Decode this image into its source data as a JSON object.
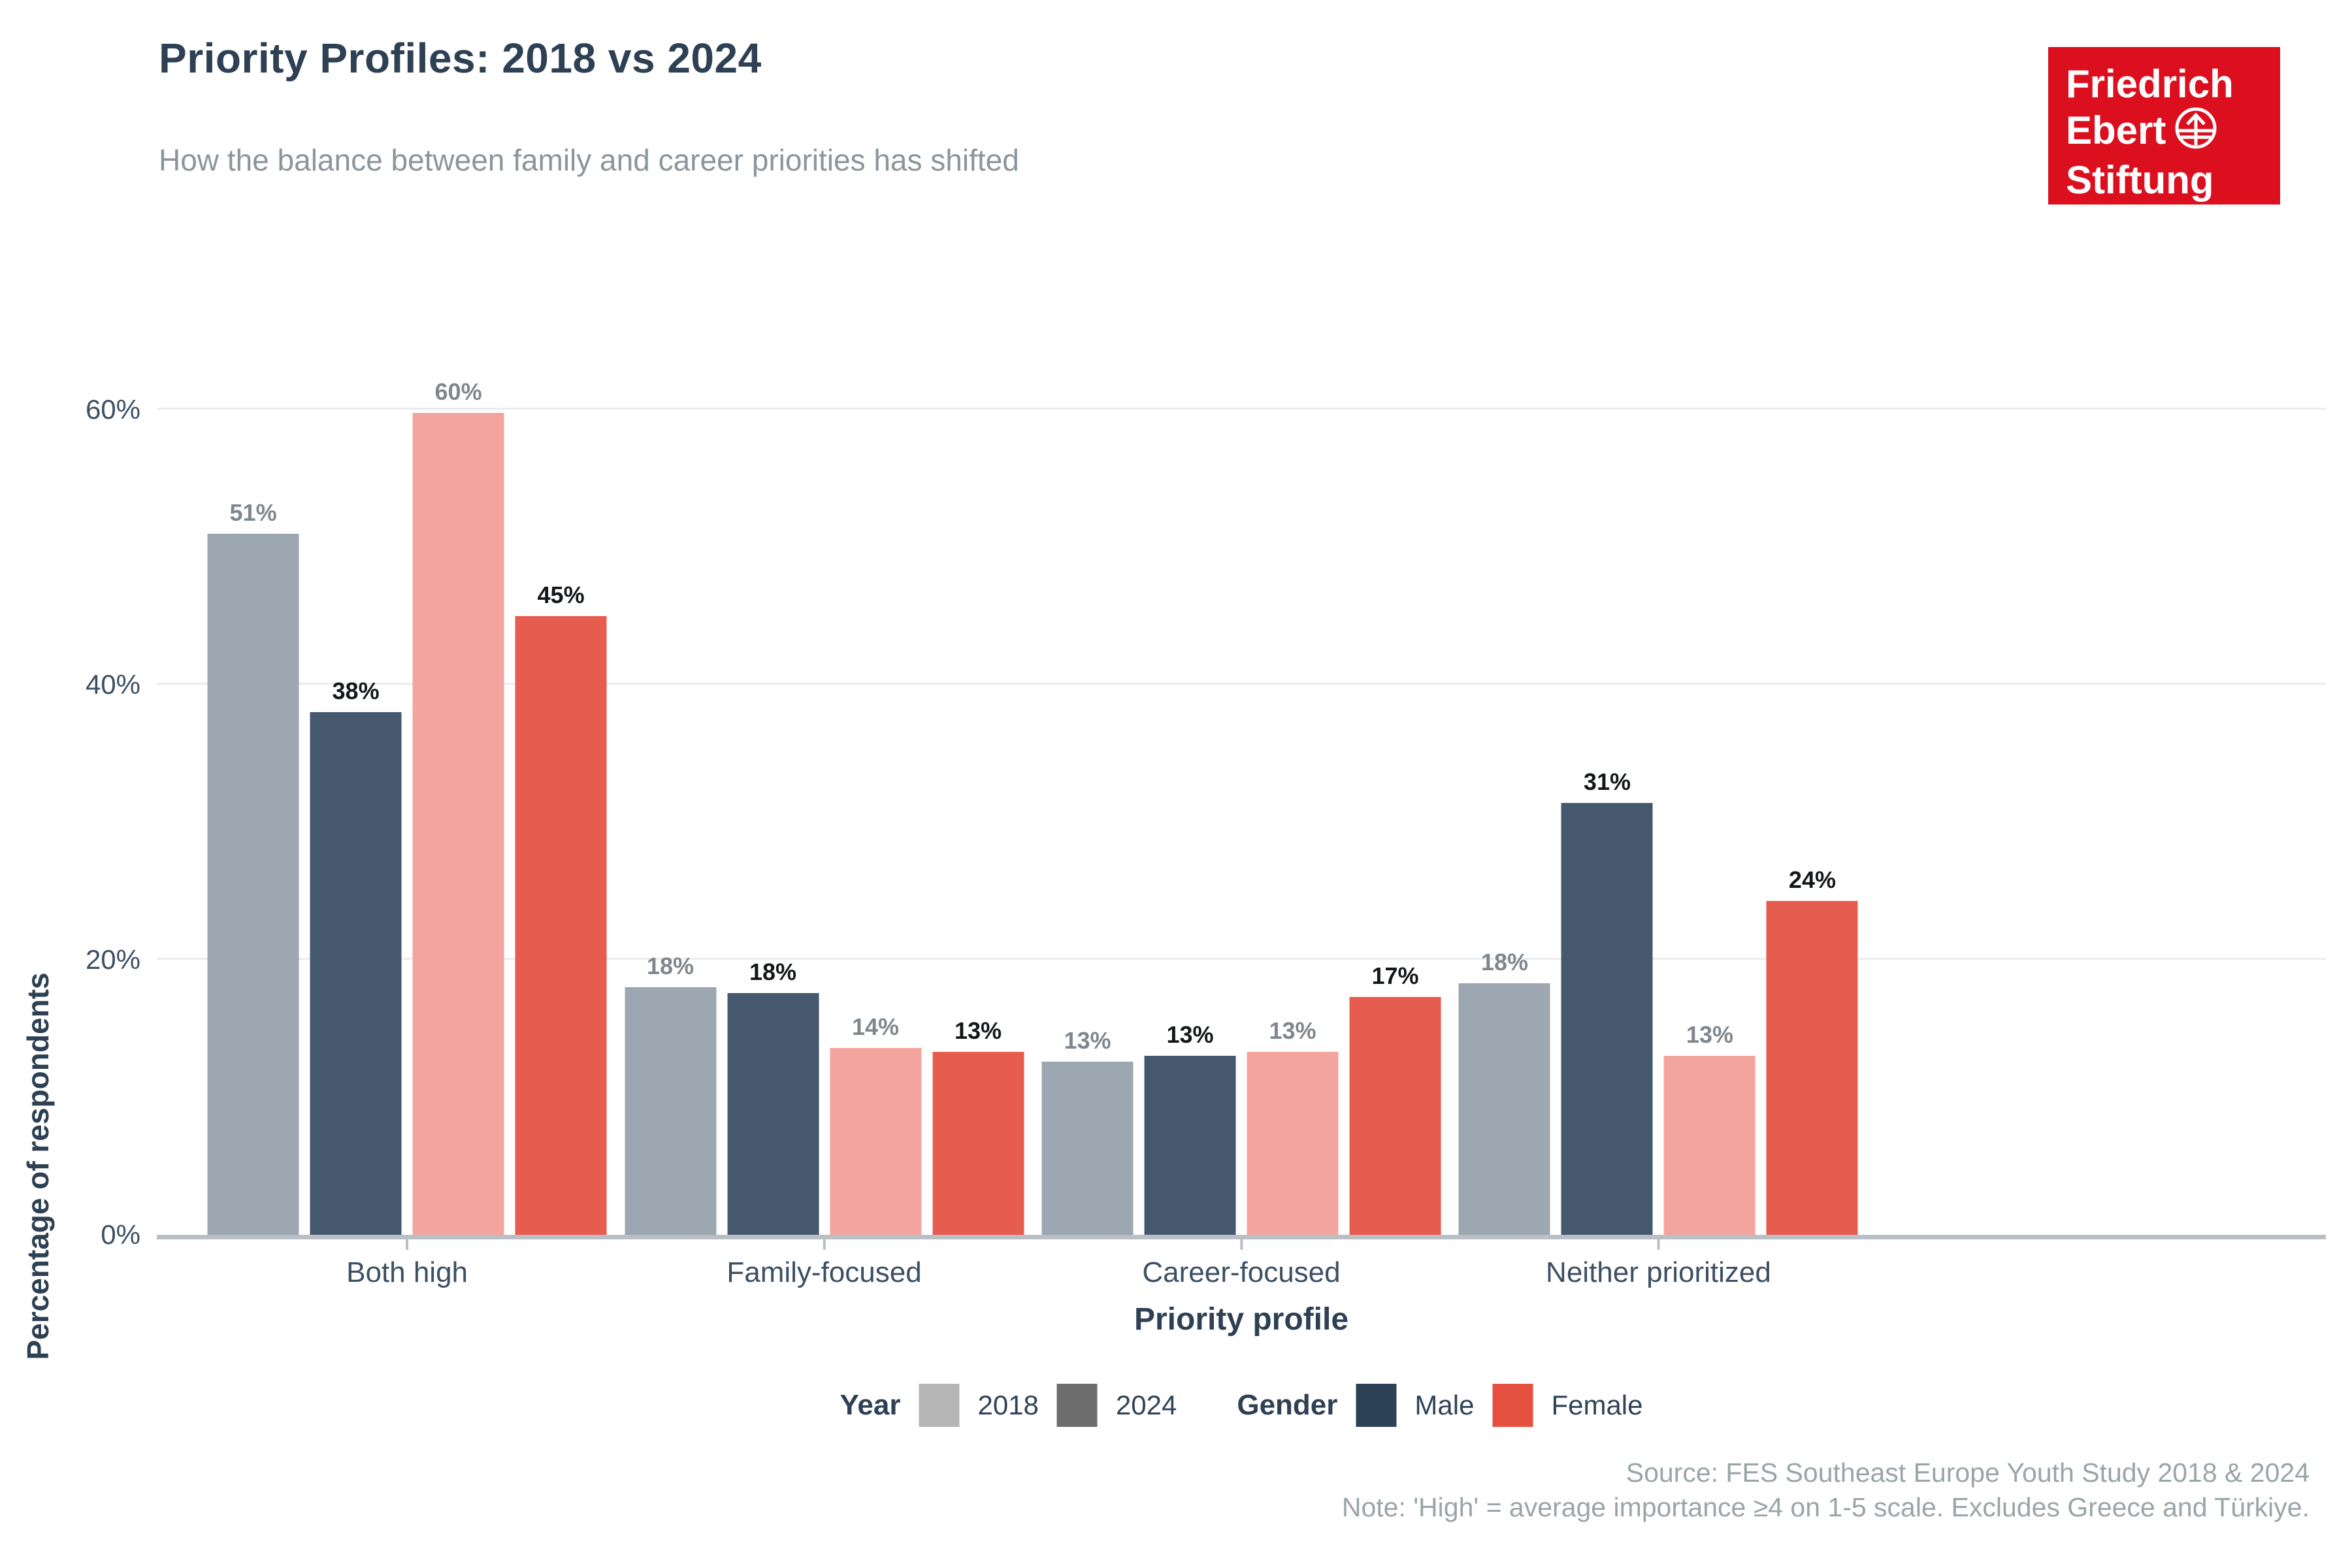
{
  "header": {
    "title": "Priority Profiles: 2018 vs 2024",
    "subtitle": "How the balance between family and career priorities has shifted"
  },
  "logo": {
    "line1": "Friedrich",
    "line2": "Ebert",
    "line3": "Stiftung",
    "bg_color": "#dc0f1e"
  },
  "chart_data": {
    "type": "bar",
    "title": "Priority Profiles: 2018 vs 2024",
    "subtitle": "How the balance between family and career priorities has shifted",
    "categories": [
      "Both high",
      "Family-focused",
      "Career-focused",
      "Neither prioritized"
    ],
    "series": [
      {
        "name": "Male 2018",
        "gender": "Male",
        "year": "2018",
        "color": "#9ca7b2",
        "label_color": "#7f878e",
        "values": [
          51,
          18,
          13,
          18
        ],
        "values_precise": [
          51,
          18,
          12.6,
          18.3
        ]
      },
      {
        "name": "Male 2024",
        "gender": "Male",
        "year": "2024",
        "color": "#46586e",
        "label_color": "#141719",
        "values": [
          38,
          18,
          13,
          31
        ],
        "values_precise": [
          38,
          17.6,
          13,
          31.4
        ]
      },
      {
        "name": "Female 2018",
        "gender": "Female",
        "year": "2018",
        "color": "#f4a49e",
        "label_color": "#7f878e",
        "values": [
          60,
          14,
          13,
          13
        ],
        "values_precise": [
          59.8,
          13.6,
          13.3,
          13
        ]
      },
      {
        "name": "Female 2024",
        "gender": "Female",
        "year": "2024",
        "color": "#e65c4e",
        "label_color": "#141719",
        "values": [
          45,
          13,
          17,
          24
        ],
        "values_precise": [
          45,
          13.3,
          17.3,
          24.3
        ]
      }
    ],
    "xlabel": "Priority profile",
    "ylabel": "Percentage of respondents",
    "yticks": [
      {
        "label": "0%",
        "value": 0
      },
      {
        "label": "20%",
        "value": 20
      },
      {
        "label": "40%",
        "value": 40
      },
      {
        "label": "60%",
        "value": 60
      }
    ],
    "gridline_values": [
      20,
      40,
      60
    ],
    "ylim": [
      0,
      63.2
    ],
    "grid": "horizontal-major-only",
    "legend_position": "bottom",
    "value_label_suffix": "%"
  },
  "legend": {
    "year_title": "Year",
    "year_items": [
      {
        "label": "2018",
        "color": "#b5b5b5"
      },
      {
        "label": "2024",
        "color": "#6d6d6d"
      }
    ],
    "gender_title": "Gender",
    "gender_items": [
      {
        "label": "Male",
        "color": "#2d4156"
      },
      {
        "label": "Female",
        "color": "#e6503e"
      }
    ]
  },
  "footer": {
    "source": "Source: FES Southeast Europe Youth Study 2018 & 2024",
    "note": "Note: 'High' = average importance ≥4 on 1-5 scale. Excludes Greece and Türkiye."
  }
}
